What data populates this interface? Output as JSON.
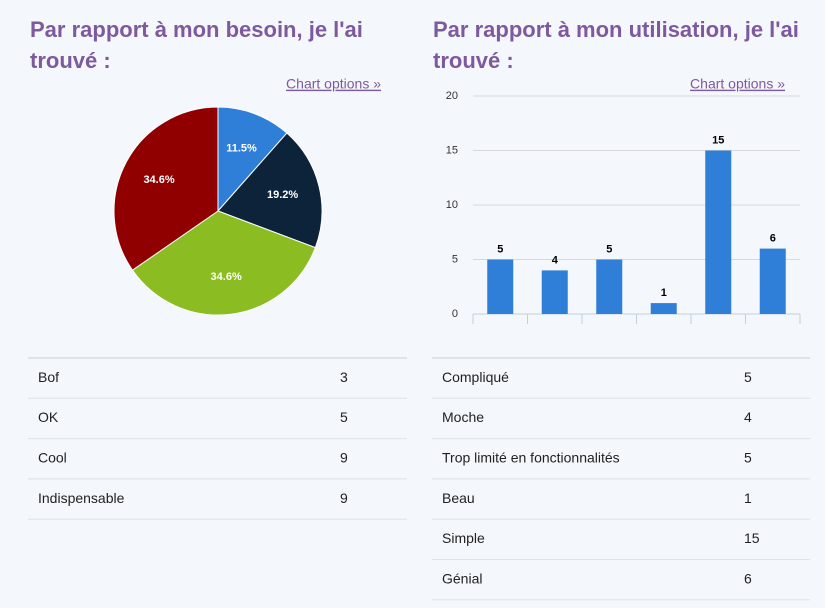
{
  "chart_data": [
    {
      "type": "pie",
      "title": "Par rapport à mon besoin, je l'ai trouvé :",
      "options_link": "Chart options »",
      "categories": [
        "Bof",
        "OK",
        "Cool",
        "Indispensable"
      ],
      "values": [
        11.5,
        19.2,
        34.6,
        34.6
      ],
      "value_labels": [
        "11.5%",
        "19.2%",
        "34.6%",
        "34.6%"
      ],
      "colors": [
        "#2f7ed8",
        "#0d233a",
        "#8bbc21",
        "#910000"
      ]
    },
    {
      "type": "bar",
      "title": "Par rapport à mon utilisation, je l'ai trouvé :",
      "options_link": "Chart options »",
      "values": [
        5,
        4,
        5,
        1,
        15,
        6
      ],
      "color": "#2f7ed8",
      "ylim": [
        0,
        20
      ],
      "yticks": [
        0,
        5,
        10,
        15,
        20
      ],
      "grid": true
    }
  ],
  "tables": [
    [
      [
        "Bof",
        3
      ],
      [
        "OK",
        5
      ],
      [
        "Cool",
        9
      ],
      [
        "Indispensable",
        9
      ]
    ],
    [
      [
        "Compliqué",
        5
      ],
      [
        "Moche",
        4
      ],
      [
        "Trop limité en fonctionnalités",
        5
      ],
      [
        "Beau",
        1
      ],
      [
        "Simple",
        15
      ],
      [
        "Génial",
        6
      ]
    ]
  ]
}
